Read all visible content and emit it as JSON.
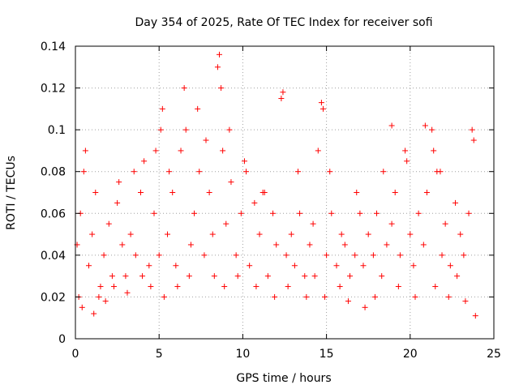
{
  "chart_data": {
    "type": "scatter",
    "title": "Day 354 of 2025, Rate Of TEC Index for receiver sofi",
    "xlabel": "GPS time / hours",
    "ylabel": "ROTI / TECUs",
    "xlim": [
      0,
      25
    ],
    "ylim": [
      0,
      0.14
    ],
    "x_ticks": [
      0,
      5,
      10,
      15,
      20,
      25
    ],
    "x_tick_labels": [
      "0",
      "5",
      "10",
      "15",
      "20",
      "25"
    ],
    "y_ticks": [
      0,
      0.02,
      0.04,
      0.06,
      0.08,
      0.1,
      0.12,
      0.14
    ],
    "y_tick_labels": [
      "0",
      "0.02",
      "0.04",
      "0.06",
      "0.08",
      "0.1",
      "0.12",
      "0.14"
    ],
    "grid": true,
    "marker": "+",
    "series": [
      {
        "name": "ROTI",
        "color": "#ff0000",
        "x": [
          0.1,
          0.3,
          0.5,
          0.8,
          1.0,
          1.2,
          1.5,
          1.7,
          2.0,
          2.2,
          2.5,
          2.8,
          3.0,
          3.3,
          3.6,
          3.9,
          4.1,
          4.4,
          4.7,
          5.0,
          5.2,
          5.5,
          5.8,
          6.0,
          6.3,
          6.6,
          6.9,
          7.1,
          7.4,
          7.7,
          8.0,
          8.2,
          8.5,
          8.8,
          9.0,
          9.3,
          9.6,
          9.9,
          10.1,
          10.4,
          10.7,
          11.0,
          11.2,
          11.5,
          11.8,
          12.0,
          12.3,
          12.6,
          12.9,
          13.1,
          13.4,
          13.7,
          14.0,
          14.2,
          14.5,
          14.8,
          15.0,
          15.3,
          15.6,
          15.9,
          16.1,
          16.4,
          16.7,
          17.0,
          17.2,
          17.5,
          17.8,
          18.0,
          18.3,
          18.6,
          18.9,
          19.1,
          19.4,
          19.7,
          20.0,
          20.2,
          20.5,
          20.8,
          21.0,
          21.3,
          21.6,
          21.9,
          22.1,
          22.4,
          22.7,
          23.0,
          23.2,
          23.5,
          23.8,
          0.2,
          0.4,
          0.6,
          1.1,
          1.4,
          1.8,
          2.3,
          2.6,
          3.1,
          3.5,
          4.0,
          4.5,
          4.8,
          5.1,
          5.3,
          5.6,
          6.1,
          6.5,
          6.8,
          7.3,
          7.8,
          8.3,
          8.6,
          8.7,
          8.9,
          9.2,
          9.7,
          10.2,
          10.8,
          11.3,
          11.9,
          12.4,
          12.7,
          13.3,
          13.8,
          14.3,
          14.7,
          14.9,
          15.2,
          15.8,
          16.3,
          16.8,
          17.3,
          17.9,
          18.4,
          18.9,
          19.3,
          19.8,
          20.3,
          20.9,
          21.4,
          21.5,
          21.8,
          22.3,
          22.8,
          23.3,
          23.7,
          23.9
        ],
        "y": [
          0.045,
          0.06,
          0.08,
          0.035,
          0.05,
          0.07,
          0.025,
          0.04,
          0.055,
          0.03,
          0.065,
          0.045,
          0.03,
          0.05,
          0.04,
          0.07,
          0.085,
          0.035,
          0.06,
          0.04,
          0.11,
          0.05,
          0.07,
          0.035,
          0.09,
          0.1,
          0.045,
          0.06,
          0.08,
          0.04,
          0.07,
          0.05,
          0.13,
          0.09,
          0.055,
          0.075,
          0.04,
          0.06,
          0.085,
          0.035,
          0.065,
          0.05,
          0.07,
          0.03,
          0.06,
          0.045,
          0.115,
          0.04,
          0.05,
          0.035,
          0.06,
          0.03,
          0.045,
          0.055,
          0.09,
          0.11,
          0.04,
          0.06,
          0.035,
          0.05,
          0.045,
          0.03,
          0.04,
          0.06,
          0.035,
          0.05,
          0.04,
          0.06,
          0.03,
          0.045,
          0.055,
          0.07,
          0.04,
          0.09,
          0.05,
          0.035,
          0.06,
          0.045,
          0.07,
          0.1,
          0.08,
          0.04,
          0.055,
          0.035,
          0.065,
          0.05,
          0.04,
          0.06,
          0.095,
          0.02,
          0.015,
          0.09,
          0.012,
          0.02,
          0.018,
          0.025,
          0.075,
          0.022,
          0.08,
          0.03,
          0.025,
          0.09,
          0.1,
          0.02,
          0.08,
          0.025,
          0.12,
          0.03,
          0.11,
          0.095,
          0.03,
          0.136,
          0.12,
          0.025,
          0.1,
          0.03,
          0.08,
          0.025,
          0.07,
          0.02,
          0.118,
          0.025,
          0.08,
          0.02,
          0.03,
          0.113,
          0.02,
          0.08,
          0.025,
          0.018,
          0.07,
          0.015,
          0.02,
          0.08,
          0.102,
          0.025,
          0.085,
          0.02,
          0.102,
          0.09,
          0.025,
          0.08,
          0.02,
          0.03,
          0.018,
          0.1,
          0.011
        ]
      }
    ]
  }
}
